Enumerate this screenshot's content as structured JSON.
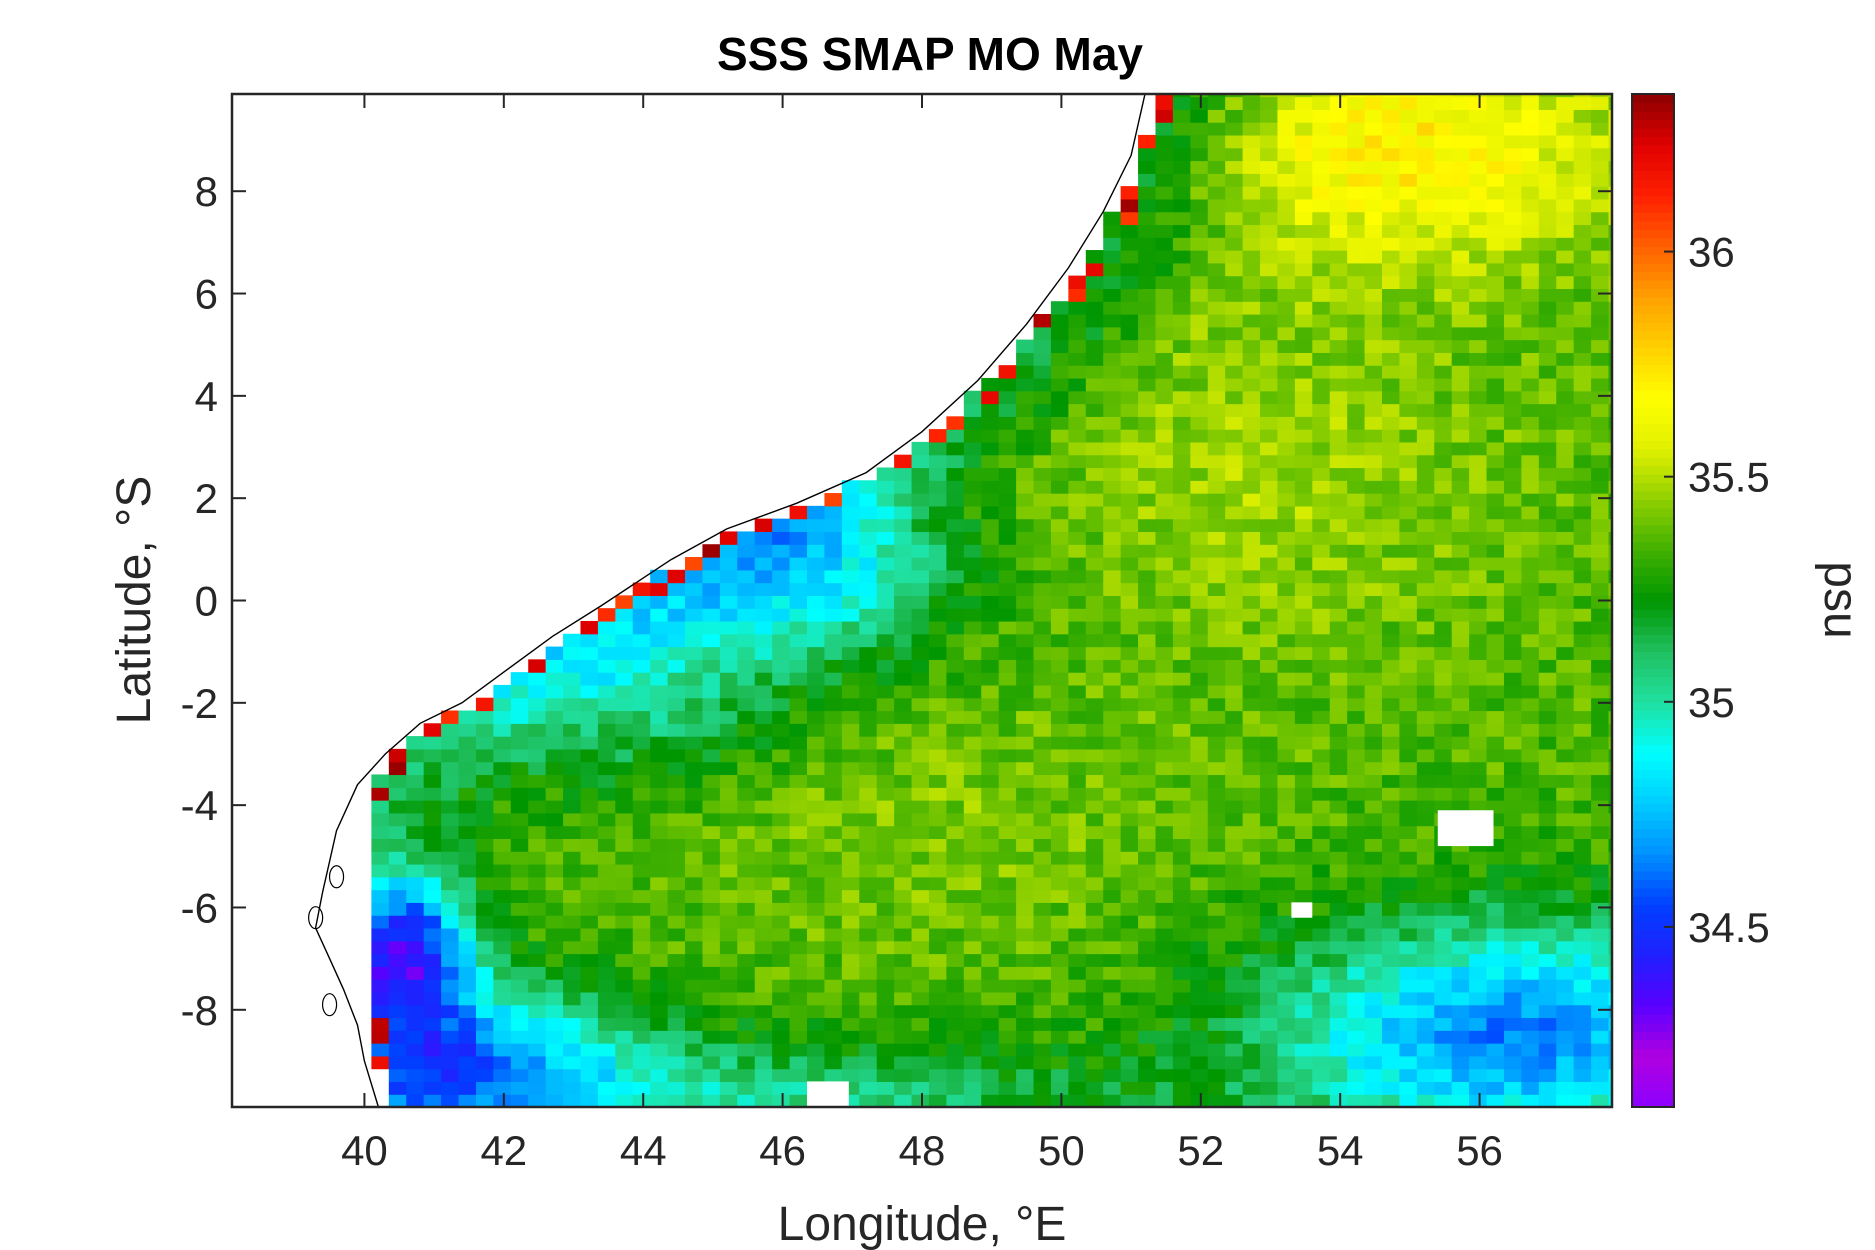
{
  "chart_data": {
    "type": "heatmap",
    "title": "SSS SMAP MO May",
    "xlabel": "Longitude, °E",
    "ylabel": "Latitude, °S",
    "colorbar_label": "psu",
    "xlim": [
      38.1,
      57.9
    ],
    "ylim": [
      -9.9,
      9.9
    ],
    "x_ticks": [
      40,
      42,
      44,
      46,
      48,
      50,
      52,
      54,
      56
    ],
    "x_tick_labels": [
      "40",
      "42",
      "44",
      "46",
      "48",
      "50",
      "52",
      "54",
      "56"
    ],
    "y_ticks": [
      8,
      6,
      4,
      2,
      0,
      -2,
      -4,
      -6,
      -8
    ],
    "y_tick_labels": [
      "8",
      "6",
      "4",
      "2",
      "0",
      "-2",
      "-4",
      "-6",
      "-8"
    ],
    "clim": [
      34.1,
      36.35
    ],
    "colorbar_ticks": [
      36,
      35.5,
      35,
      34.5
    ],
    "colorbar_tick_labels": [
      "36",
      "35.5",
      "35",
      "34.5"
    ],
    "colormap": [
      "#8c00ff",
      "#b000e0",
      "#5a00ff",
      "#2020ff",
      "#0040ff",
      "#0090ff",
      "#00ccff",
      "#00ffff",
      "#20e0a0",
      "#20c060",
      "#009600",
      "#40b000",
      "#90d000",
      "#e0f000",
      "#ffff00",
      "#ffd000",
      "#ffa000",
      "#ff6000",
      "#ff2000",
      "#e00000",
      "#8b0000"
    ],
    "grid": false,
    "grid_step_deg": 0.25,
    "coastline_color": "#000000",
    "salinity_regions": [
      {
        "region": "northeast",
        "lon": [
          51.2,
          57.9
        ],
        "lat": [
          6.5,
          9.9
        ],
        "value": 35.7
      },
      {
        "region": "central-ocean",
        "lon": [
          49,
          57.9
        ],
        "lat": [
          -5,
          6
        ],
        "value": 35.45
      },
      {
        "region": "coastal-band-north",
        "lon": [
          44,
          49
        ],
        "lat": [
          -1,
          3
        ],
        "value": 34.85
      },
      {
        "region": "southwest",
        "lon": [
          40.2,
          41
        ],
        "lat": [
          -8,
          -5.5
        ],
        "value": 34.55
      },
      {
        "region": "southeast",
        "lon": [
          53,
          57.9
        ],
        "lat": [
          -9.9,
          -6
        ],
        "value": 34.75
      },
      {
        "region": "mid-south",
        "lon": [
          42,
          50
        ],
        "lat": [
          -6,
          -2
        ],
        "value": 35.4
      }
    ]
  }
}
